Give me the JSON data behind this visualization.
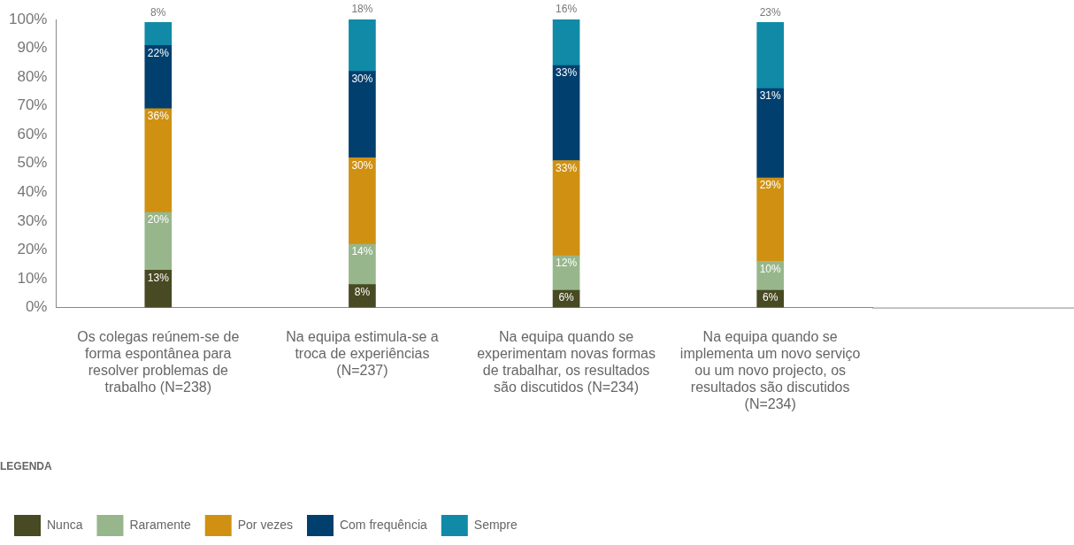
{
  "chart_data": {
    "type": "bar",
    "stacked": true,
    "categories": [
      "Os colegas reúnem-se de forma espontânea para resolver problemas de trabalho (N=238)",
      "Na equipa estimula-se a troca de experiências (N=237)",
      "Na equipa quando se experimentam novas formas de trabalhar, os resultados são discutidos (N=234)",
      "Na equipa quando se implementa um novo serviço ou um novo projecto, os resultados são discutidos (N=234)"
    ],
    "series": [
      {
        "name": "Nunca",
        "color": "#474a22",
        "values": [
          13,
          8,
          6,
          6
        ],
        "value_labels": [
          "13%",
          "8%",
          "6%",
          "6%"
        ]
      },
      {
        "name": "Raramente",
        "color": "#98b68b",
        "values": [
          20,
          14,
          12,
          10
        ],
        "value_labels": [
          "20%",
          "14%",
          "12%",
          "10%"
        ]
      },
      {
        "name": "Por vezes",
        "color": "#d09112",
        "values": [
          36,
          30,
          33,
          29
        ],
        "value_labels": [
          "36%",
          "30%",
          "33%",
          "29%"
        ]
      },
      {
        "name": "Com frequência",
        "color": "#003f6e",
        "values": [
          22,
          30,
          33,
          31
        ],
        "value_labels": [
          "22%",
          "30%",
          "33%",
          "31%"
        ]
      },
      {
        "name": "Sempre",
        "color": "#108aa6",
        "values": [
          8,
          18,
          16,
          23
        ],
        "value_labels": [
          "8%",
          "18%",
          "16%",
          "23%"
        ]
      }
    ],
    "ylim": [
      0,
      100
    ],
    "yticks": [
      {
        "value": 0,
        "label": "0%"
      },
      {
        "value": 10,
        "label": "10%"
      },
      {
        "value": 20,
        "label": "20%"
      },
      {
        "value": 30,
        "label": "30%"
      },
      {
        "value": 40,
        "label": "40%"
      },
      {
        "value": 50,
        "label": "50%"
      },
      {
        "value": 60,
        "label": "60%"
      },
      {
        "value": 70,
        "label": "70%"
      },
      {
        "value": 80,
        "label": "80%"
      },
      {
        "value": 90,
        "label": "90%"
      },
      {
        "value": 100,
        "label": "100%"
      }
    ],
    "grid": false,
    "legend": "bottom left",
    "legend_title": "LEGENDA"
  }
}
